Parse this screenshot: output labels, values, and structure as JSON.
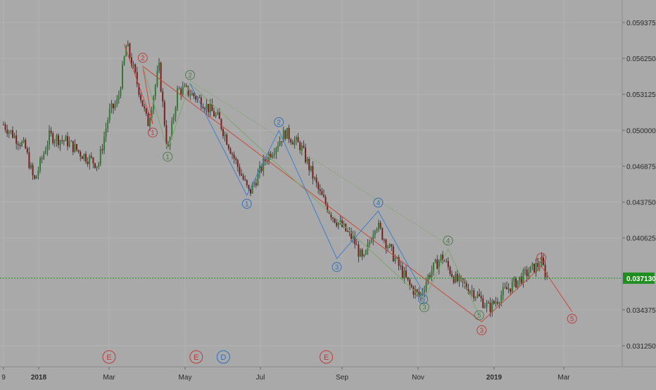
{
  "chart_data": {
    "type": "candlestick",
    "price_axis": {
      "ticks": [
        "0.059375",
        "0.056250",
        "0.053125",
        "0.050000",
        "0.046875",
        "0.043750",
        "0.040625",
        "0.034375",
        "0.031250"
      ],
      "tick_values": [
        0.059375,
        0.05625,
        0.053125,
        0.05,
        0.046875,
        0.04375,
        0.040625,
        0.034375,
        0.03125
      ],
      "current_price_label": "0.037130",
      "current_price": 0.03713
    },
    "time_axis": {
      "labels": [
        "9",
        "2018",
        "Mar",
        "May",
        "Jul",
        "Sep",
        "Nov",
        "2019",
        "Mar"
      ],
      "bold_labels": [
        "2018",
        "2019"
      ]
    },
    "series_close_path": [
      [
        "2017-12-01",
        0.0505
      ],
      [
        "2017-12-20",
        0.0485
      ],
      [
        "2017-12-28",
        0.0455
      ],
      [
        "2018-01-10",
        0.0495
      ],
      [
        "2018-01-25",
        0.049
      ],
      [
        "2018-02-05",
        0.048
      ],
      [
        "2018-02-20",
        0.047
      ],
      [
        "2018-03-01",
        0.0515
      ],
      [
        "2018-03-08",
        0.0525
      ],
      [
        "2018-03-15",
        0.0575
      ],
      [
        "2018-03-25",
        0.0535
      ],
      [
        "2018-04-01",
        0.0505
      ],
      [
        "2018-04-10",
        0.0555
      ],
      [
        "2018-04-17",
        0.048
      ],
      [
        "2018-04-25",
        0.0535
      ],
      [
        "2018-05-01",
        0.0535
      ],
      [
        "2018-05-15",
        0.0525
      ],
      [
        "2018-05-28",
        0.051
      ],
      [
        "2018-06-10",
        0.0475
      ],
      [
        "2018-06-22",
        0.0445
      ],
      [
        "2018-07-05",
        0.0475
      ],
      [
        "2018-07-20",
        0.0498
      ],
      [
        "2018-08-01",
        0.0485
      ],
      [
        "2018-08-15",
        0.0445
      ],
      [
        "2018-08-25",
        0.0425
      ],
      [
        "2018-09-10",
        0.0405
      ],
      [
        "2018-09-18",
        0.0385
      ],
      [
        "2018-09-28",
        0.042
      ],
      [
        "2018-10-10",
        0.0395
      ],
      [
        "2018-10-25",
        0.0365
      ],
      [
        "2018-11-02",
        0.0355
      ],
      [
        "2018-11-10",
        0.0375
      ],
      [
        "2018-11-20",
        0.039
      ],
      [
        "2018-12-01",
        0.037
      ],
      [
        "2018-12-15",
        0.036
      ],
      [
        "2018-12-28",
        0.0345
      ],
      [
        "2019-01-10",
        0.036
      ],
      [
        "2019-01-28",
        0.0375
      ],
      [
        "2019-02-10",
        0.0385
      ],
      [
        "2019-02-15",
        0.03713
      ]
    ],
    "wave_labels": [
      {
        "text": "2",
        "date": "2018-03-28",
        "price": 0.0563,
        "color": "#b84040"
      },
      {
        "text": "1",
        "date": "2018-04-05",
        "price": 0.0498,
        "color": "#b84040"
      },
      {
        "text": "1",
        "date": "2018-04-17",
        "price": 0.0477,
        "color": "#4f7a4f"
      },
      {
        "text": "2",
        "date": "2018-05-05",
        "price": 0.0548,
        "color": "#4f7a4f"
      },
      {
        "text": "1",
        "date": "2018-06-20",
        "price": 0.0436,
        "color": "#3570b5"
      },
      {
        "text": "2",
        "date": "2018-07-15",
        "price": 0.0507,
        "color": "#3570b5"
      },
      {
        "text": "3",
        "date": "2018-08-28",
        "price": 0.0381,
        "color": "#3570b5"
      },
      {
        "text": "4",
        "date": "2018-09-30",
        "price": 0.0437,
        "color": "#3570b5"
      },
      {
        "text": "5",
        "date": "2018-11-05",
        "price": 0.0353,
        "color": "#3570b5"
      },
      {
        "text": "3",
        "date": "2018-11-06",
        "price": 0.0346,
        "color": "#4f7a4f"
      },
      {
        "text": "4",
        "date": "2018-11-25",
        "price": 0.0404,
        "color": "#4f7a4f"
      },
      {
        "text": "5",
        "date": "2018-12-20",
        "price": 0.0339,
        "color": "#4f7a4f"
      },
      {
        "text": "3",
        "date": "2018-12-22",
        "price": 0.0326,
        "color": "#b84040"
      },
      {
        "text": "4",
        "date": "2019-02-10",
        "price": 0.0389,
        "color": "#b84040"
      },
      {
        "text": "5",
        "date": "2019-03-08",
        "price": 0.0336,
        "color": "#b84040"
      }
    ],
    "event_markers": [
      {
        "text": "E",
        "date": "2018-03-01",
        "color": "#c03a3a"
      },
      {
        "text": "E",
        "date": "2018-05-10",
        "color": "#c03a3a"
      },
      {
        "text": "D",
        "date": "2018-06-01",
        "color": "#2d6fbf"
      },
      {
        "text": "E",
        "date": "2018-08-20",
        "color": "#c03a3a"
      }
    ],
    "colors": {
      "background": "#a9a9a9",
      "wave_red": "#c94a3a",
      "wave_green": "#7da86a",
      "wave_blue": "#3f7fd0",
      "price_line": "#1e8f1e"
    }
  }
}
